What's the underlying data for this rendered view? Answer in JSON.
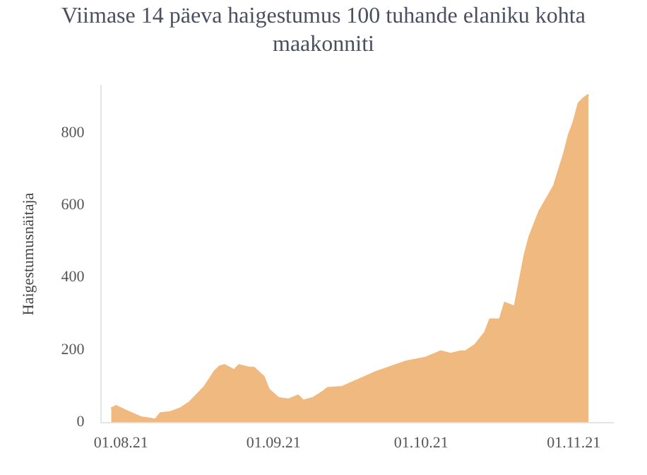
{
  "chart_data": {
    "type": "area",
    "title": "Viimase 14 päeva haigestumus 100 tuhande elaniku kohta maakonniti",
    "ylabel": "Haigestumusnäitaja",
    "x": [
      "2021-07-30",
      "2021-07-31",
      "2021-08-02",
      "2021-08-05",
      "2021-08-07",
      "2021-08-08",
      "2021-08-09",
      "2021-08-11",
      "2021-08-13",
      "2021-08-15",
      "2021-08-18",
      "2021-08-20",
      "2021-08-21",
      "2021-08-22",
      "2021-08-24",
      "2021-08-25",
      "2021-08-27",
      "2021-08-28",
      "2021-08-30",
      "2021-08-31",
      "2021-09-02",
      "2021-09-04",
      "2021-09-06",
      "2021-09-07",
      "2021-09-09",
      "2021-09-11",
      "2021-09-12",
      "2021-09-15",
      "2021-09-18",
      "2021-09-22",
      "2021-09-25",
      "2021-09-28",
      "2021-10-02",
      "2021-10-05",
      "2021-10-07",
      "2021-10-09",
      "2021-10-10",
      "2021-10-12",
      "2021-10-14",
      "2021-10-15",
      "2021-10-17",
      "2021-10-18",
      "2021-10-20",
      "2021-10-22",
      "2021-10-23",
      "2021-10-25",
      "2021-10-28",
      "2021-10-30",
      "2021-10-31",
      "2021-11-01",
      "2021-11-02",
      "2021-11-03",
      "2021-11-04"
    ],
    "series": [
      {
        "color": "#f0b97f",
        "values": [
          38,
          45,
          32,
          14,
          10,
          7,
          25,
          28,
          38,
          56,
          98,
          140,
          154,
          158,
          144,
          158,
          151,
          151,
          126,
          91,
          67,
          63,
          74,
          60,
          67,
          84,
          95,
          98,
          116,
          140,
          154,
          168,
          179,
          196,
          189,
          196,
          196,
          214,
          249,
          284,
          284,
          330,
          319,
          460,
          512,
          582,
          653,
          740,
          793,
          830,
          881,
          895,
          905
        ]
      }
    ],
    "xlim": [
      "2021-07-28",
      "2021-11-09"
    ],
    "xticks": [
      {
        "value": "2021-08-01",
        "label": "01.08.21"
      },
      {
        "value": "2021-09-01",
        "label": "01.09.21"
      },
      {
        "value": "2021-10-01",
        "label": "01.10.21"
      },
      {
        "value": "2021-11-01",
        "label": "01.11.21"
      }
    ],
    "ylim": [
      0,
      930
    ],
    "yticks": [
      0,
      200,
      400,
      600,
      800
    ],
    "grid": false,
    "legend": false
  }
}
